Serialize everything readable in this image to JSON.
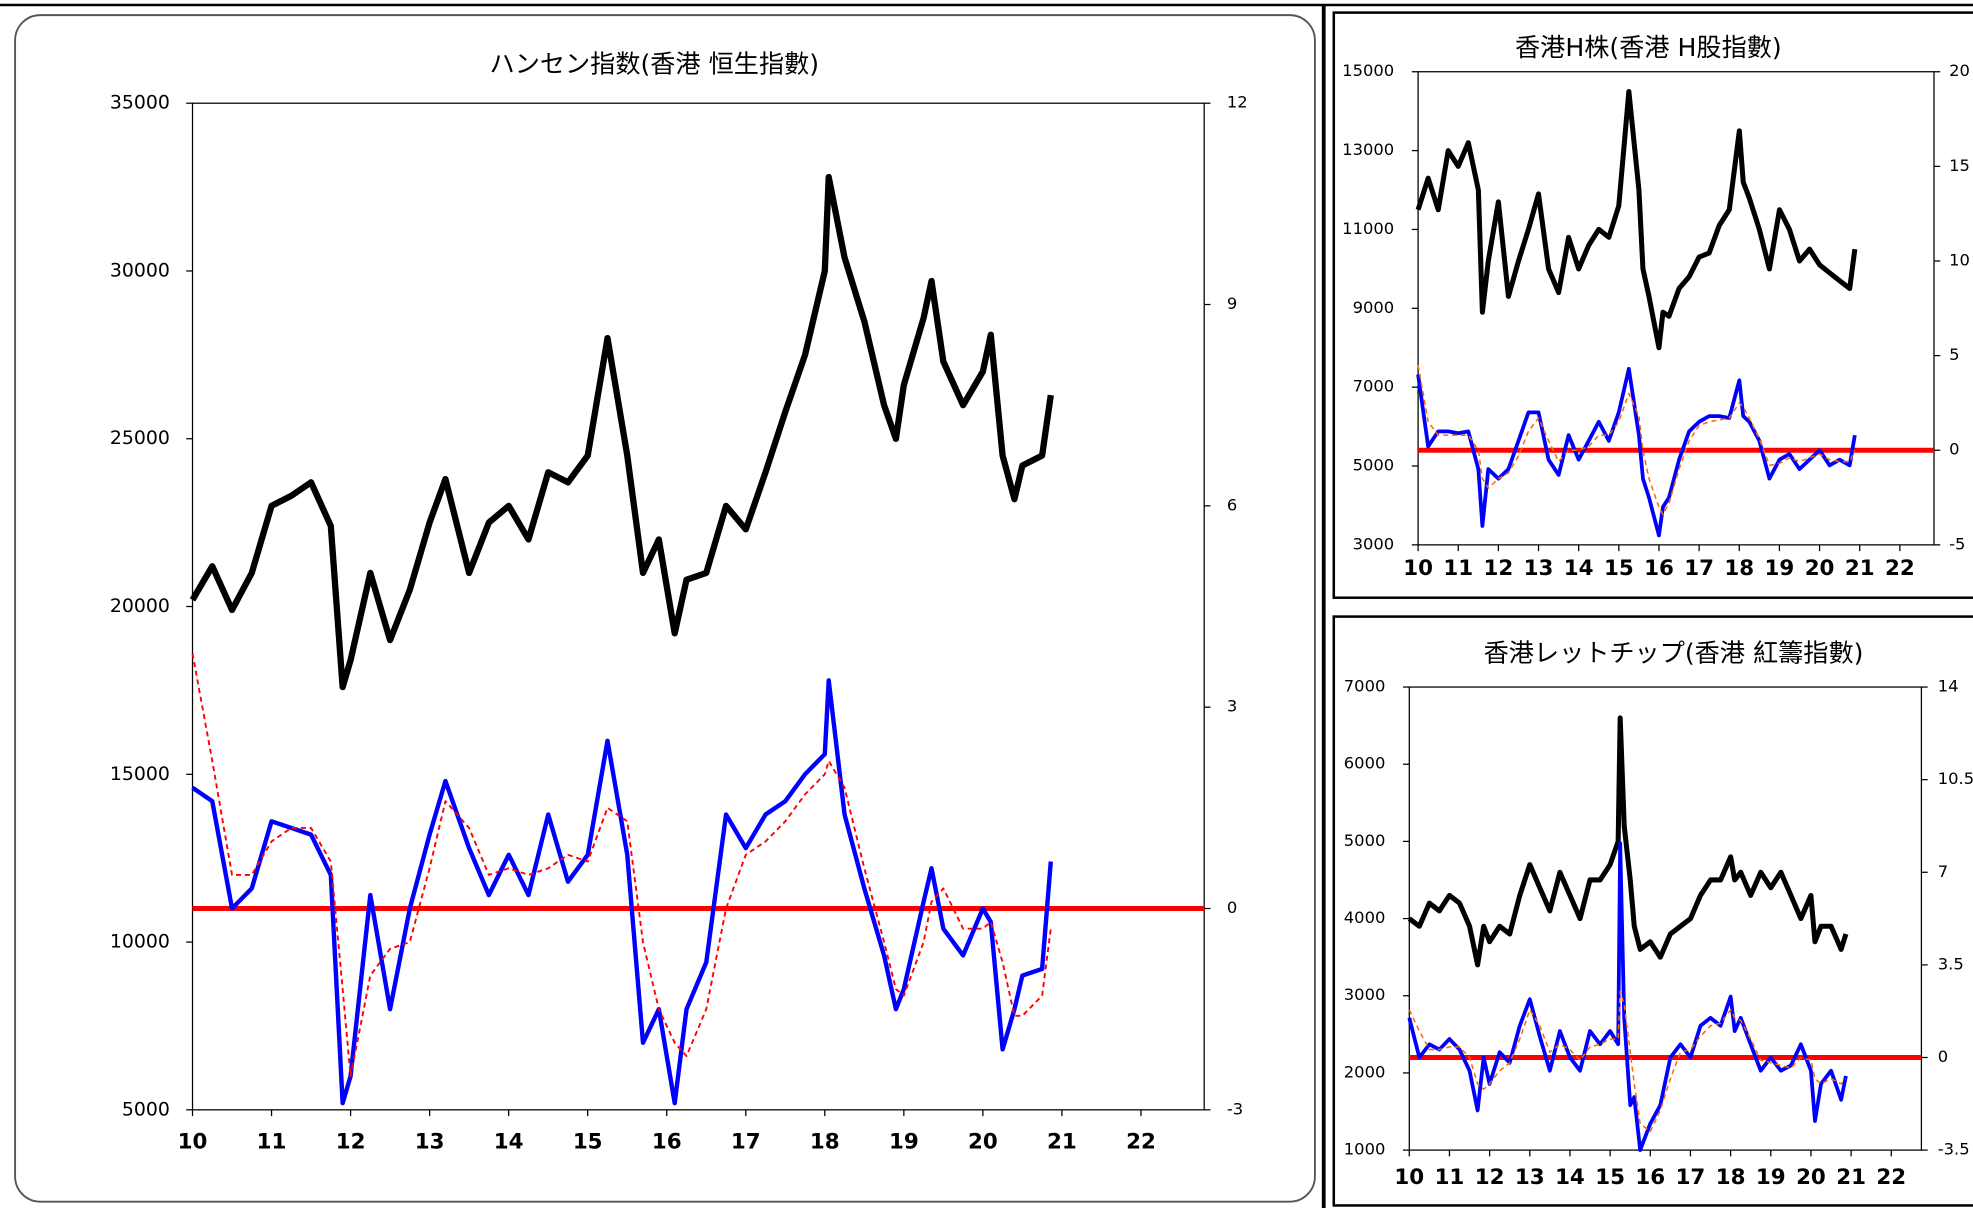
{
  "chart_data": [
    {
      "type": "line",
      "title": "ハンセン指数(香港 恒生指數)",
      "x": [
        10,
        10.25,
        10.5,
        10.75,
        11,
        11.25,
        11.5,
        11.75,
        11.9,
        12,
        12.25,
        12.5,
        12.75,
        13,
        13.2,
        13.5,
        13.75,
        14,
        14.25,
        14.5,
        14.75,
        15,
        15.25,
        15.5,
        15.7,
        15.9,
        16.1,
        16.25,
        16.5,
        16.75,
        17,
        17.25,
        17.5,
        17.75,
        18,
        18.05,
        18.25,
        18.5,
        18.75,
        18.9,
        19,
        19.25,
        19.35,
        19.5,
        19.75,
        20,
        20.1,
        20.25,
        20.4,
        20.5,
        20.75,
        20.86
      ],
      "series": [
        {
          "color": "#000000",
          "width": 5,
          "axis": "y",
          "values": [
            20200,
            21200,
            19900,
            21000,
            23000,
            23300,
            23700,
            22400,
            17600,
            18400,
            21000,
            19000,
            20500,
            22500,
            23800,
            21000,
            22500,
            23000,
            22000,
            24000,
            23700,
            24500,
            28000,
            24500,
            21000,
            22000,
            19200,
            20800,
            21000,
            23000,
            22300,
            24000,
            25800,
            27500,
            30000,
            32800,
            30400,
            28500,
            26000,
            25000,
            26600,
            28600,
            29700,
            27300,
            26000,
            27000,
            28100,
            24500,
            23200,
            24200,
            24500,
            26300
          ]
        },
        {
          "color": "#0000ff",
          "width": 3.5,
          "axis": "y2",
          "values": [
            1.8,
            1.6,
            0.0,
            0.3,
            1.3,
            1.2,
            1.1,
            0.5,
            -2.9,
            -2.5,
            0.2,
            -1.5,
            0.0,
            1.1,
            1.9,
            0.9,
            0.2,
            0.8,
            0.2,
            1.4,
            0.4,
            0.8,
            2.5,
            0.8,
            -2.0,
            -1.5,
            -2.9,
            -1.5,
            -0.8,
            1.4,
            0.9,
            1.4,
            1.6,
            2.0,
            2.3,
            3.4,
            1.4,
            0.3,
            -0.7,
            -1.5,
            -1.2,
            0.1,
            0.6,
            -0.3,
            -0.7,
            0.0,
            -0.2,
            -2.1,
            -1.5,
            -1.0,
            -0.9,
            0.7
          ]
        },
        {
          "color": "#ff0000",
          "width": 1.5,
          "dashed": true,
          "axis": "y2",
          "values": [
            3.8,
            2.2,
            0.5,
            0.5,
            1.0,
            1.2,
            1.2,
            0.7,
            -1.2,
            -2.5,
            -1.0,
            -0.6,
            -0.5,
            0.6,
            1.6,
            1.2,
            0.5,
            0.6,
            0.5,
            0.6,
            0.8,
            0.7,
            1.5,
            1.3,
            -0.5,
            -1.5,
            -2.0,
            -2.2,
            -1.5,
            0.0,
            0.8,
            1.0,
            1.3,
            1.7,
            2.0,
            2.2,
            1.8,
            0.6,
            -0.5,
            -1.2,
            -1.3,
            -0.5,
            0.1,
            0.3,
            -0.3,
            -0.3,
            -0.2,
            -0.8,
            -1.6,
            -1.6,
            -1.3,
            -0.3
          ]
        }
      ],
      "reference_line": {
        "axis": "y2",
        "value": 0,
        "color": "#ff0000"
      },
      "xlim": [
        10,
        22.8
      ],
      "xticks": [
        10,
        11,
        12,
        13,
        14,
        15,
        16,
        17,
        18,
        19,
        20,
        21,
        22
      ],
      "ylim": [
        5000,
        35000
      ],
      "yticks": [
        5000,
        10000,
        15000,
        20000,
        25000,
        30000,
        35000
      ],
      "y2lim": [
        -3,
        12
      ],
      "y2ticks": [
        -3,
        0,
        3,
        6,
        9,
        12
      ]
    },
    {
      "type": "line",
      "title": "香港H株(香港 H股指數)",
      "x": [
        10,
        10.25,
        10.5,
        10.75,
        11,
        11.25,
        11.5,
        11.6,
        11.75,
        12,
        12.25,
        12.5,
        12.75,
        13,
        13.25,
        13.5,
        13.75,
        14,
        14.25,
        14.5,
        14.75,
        15,
        15.25,
        15.5,
        15.6,
        15.75,
        16,
        16.1,
        16.25,
        16.5,
        16.75,
        17,
        17.25,
        17.5,
        17.75,
        18,
        18.1,
        18.25,
        18.5,
        18.75,
        19,
        19.25,
        19.5,
        19.75,
        20,
        20.25,
        20.5,
        20.75,
        20.88
      ],
      "series": [
        {
          "color": "#000000",
          "width": 4,
          "axis": "y",
          "values": [
            11500,
            12300,
            11500,
            13000,
            12600,
            13200,
            12000,
            8900,
            10200,
            11700,
            9300,
            10200,
            11000,
            11900,
            10000,
            9400,
            10800,
            10000,
            10600,
            11000,
            10800,
            11600,
            14500,
            12000,
            10000,
            9300,
            8000,
            8900,
            8800,
            9500,
            9800,
            10300,
            10400,
            11100,
            11500,
            13500,
            12200,
            11800,
            11000,
            10000,
            11500,
            11000,
            10200,
            10500,
            10100,
            9900,
            9700,
            9500,
            10500
          ]
        },
        {
          "color": "#0000ff",
          "width": 3,
          "axis": "y2",
          "values": [
            4.0,
            0.2,
            1.0,
            1.0,
            0.9,
            1.0,
            -1.0,
            -4.0,
            -1.0,
            -1.5,
            -1.0,
            0.5,
            2.0,
            2.0,
            -0.5,
            -1.3,
            0.8,
            -0.5,
            0.5,
            1.5,
            0.5,
            2.0,
            4.3,
            0.8,
            -1.5,
            -2.5,
            -4.5,
            -3.0,
            -2.5,
            -0.5,
            1.0,
            1.5,
            1.8,
            1.8,
            1.7,
            3.7,
            1.8,
            1.5,
            0.5,
            -1.5,
            -0.5,
            -0.2,
            -1.0,
            -0.5,
            0.0,
            -0.8,
            -0.5,
            -0.8,
            0.8
          ]
        },
        {
          "color": "#ff6600",
          "width": 1.2,
          "dashed": true,
          "axis": "y2",
          "values": [
            4.5,
            1.5,
            0.8,
            0.8,
            0.8,
            0.8,
            0.0,
            -1.5,
            -2.0,
            -1.5,
            -1.2,
            -0.3,
            1.0,
            1.7,
            0.5,
            -0.6,
            0.0,
            0.0,
            0.2,
            0.8,
            0.8,
            1.5,
            3.0,
            1.8,
            0.0,
            -1.5,
            -3.0,
            -3.4,
            -2.8,
            -1.0,
            0.5,
            1.3,
            1.5,
            1.6,
            1.7,
            2.5,
            2.3,
            1.7,
            0.6,
            -0.8,
            -0.7,
            -0.4,
            -0.6,
            -0.4,
            -0.2,
            -0.5,
            -0.6,
            -0.6,
            0.0
          ]
        }
      ],
      "reference_line": {
        "axis": "y2",
        "value": 0,
        "color": "#ff0000"
      },
      "xlim": [
        10,
        22.85
      ],
      "xticks": [
        10,
        11,
        12,
        13,
        14,
        15,
        16,
        17,
        18,
        19,
        20,
        21,
        22
      ],
      "ylim": [
        3000,
        15000
      ],
      "yticks": [
        3000,
        5000,
        7000,
        9000,
        11000,
        13000,
        15000
      ],
      "y2lim": [
        -5,
        20
      ],
      "y2ticks": [
        -5,
        0,
        5,
        10,
        15,
        20
      ]
    },
    {
      "type": "line",
      "title": "香港レットチップ(香港 紅籌指數)",
      "x": [
        10,
        10.25,
        10.5,
        10.75,
        11,
        11.25,
        11.5,
        11.7,
        11.85,
        12,
        12.25,
        12.5,
        12.75,
        13,
        13.25,
        13.5,
        13.75,
        14,
        14.25,
        14.5,
        14.75,
        15,
        15.2,
        15.25,
        15.35,
        15.5,
        15.6,
        15.75,
        16,
        16.25,
        16.5,
        16.75,
        17,
        17.25,
        17.5,
        17.75,
        18,
        18.1,
        18.25,
        18.5,
        18.75,
        19,
        19.25,
        19.5,
        19.75,
        20,
        20.1,
        20.25,
        20.5,
        20.75,
        20.87
      ],
      "series": [
        {
          "color": "#000000",
          "width": 4,
          "axis": "y",
          "values": [
            4000,
            3900,
            4200,
            4100,
            4300,
            4200,
            3900,
            3400,
            3900,
            3700,
            3900,
            3800,
            4300,
            4700,
            4400,
            4100,
            4600,
            4300,
            4000,
            4500,
            4500,
            4700,
            5000,
            6600,
            5200,
            4500,
            3900,
            3600,
            3700,
            3500,
            3800,
            3900,
            4000,
            4300,
            4500,
            4500,
            4800,
            4500,
            4600,
            4300,
            4600,
            4400,
            4600,
            4300,
            4000,
            4300,
            3700,
            3900,
            3900,
            3600,
            3800
          ]
        },
        {
          "color": "#0000ff",
          "width": 3,
          "axis": "y2",
          "values": [
            1.5,
            0.0,
            0.5,
            0.3,
            0.7,
            0.3,
            -0.5,
            -2.0,
            0.0,
            -1.0,
            0.2,
            -0.2,
            1.2,
            2.2,
            0.8,
            -0.5,
            1.0,
            0.0,
            -0.5,
            1.0,
            0.5,
            1.0,
            0.5,
            8.1,
            1.5,
            -1.8,
            -1.5,
            -3.5,
            -2.5,
            -1.8,
            0.0,
            0.5,
            0.0,
            1.2,
            1.5,
            1.2,
            2.3,
            1.0,
            1.5,
            0.5,
            -0.5,
            0.0,
            -0.5,
            -0.3,
            0.5,
            -0.5,
            -2.4,
            -1.0,
            -0.5,
            -1.6,
            -0.7
          ]
        },
        {
          "color": "#ff6600",
          "width": 1.2,
          "dashed": true,
          "axis": "y2",
          "values": [
            1.8,
            1.0,
            0.3,
            0.3,
            0.4,
            0.4,
            0.0,
            -1.0,
            -1.2,
            -1.0,
            -0.5,
            -0.2,
            0.7,
            1.8,
            1.2,
            0.2,
            0.5,
            0.3,
            -0.1,
            0.4,
            0.5,
            0.7,
            0.7,
            2.5,
            2.0,
            0.2,
            -1.0,
            -2.5,
            -2.8,
            -2.0,
            -0.8,
            0.2,
            0.3,
            0.8,
            1.2,
            1.3,
            1.8,
            1.5,
            1.4,
            0.7,
            -0.1,
            -0.2,
            -0.3,
            -0.4,
            0.0,
            -0.1,
            -0.8,
            -1.0,
            -0.8,
            -1.0,
            -0.8
          ]
        }
      ],
      "reference_line": {
        "axis": "y2",
        "value": 0,
        "color": "#ff0000"
      },
      "xlim": [
        10,
        22.75
      ],
      "xticks": [
        10,
        11,
        12,
        13,
        14,
        15,
        16,
        17,
        18,
        19,
        20,
        21,
        22
      ],
      "ylim": [
        1000,
        7000
      ],
      "yticks": [
        1000,
        2000,
        3000,
        4000,
        5000,
        6000,
        7000
      ],
      "y2lim": [
        -3.5,
        14
      ],
      "y2ticks": [
        -3.5,
        0,
        3.5,
        7,
        10.5,
        14
      ]
    }
  ]
}
